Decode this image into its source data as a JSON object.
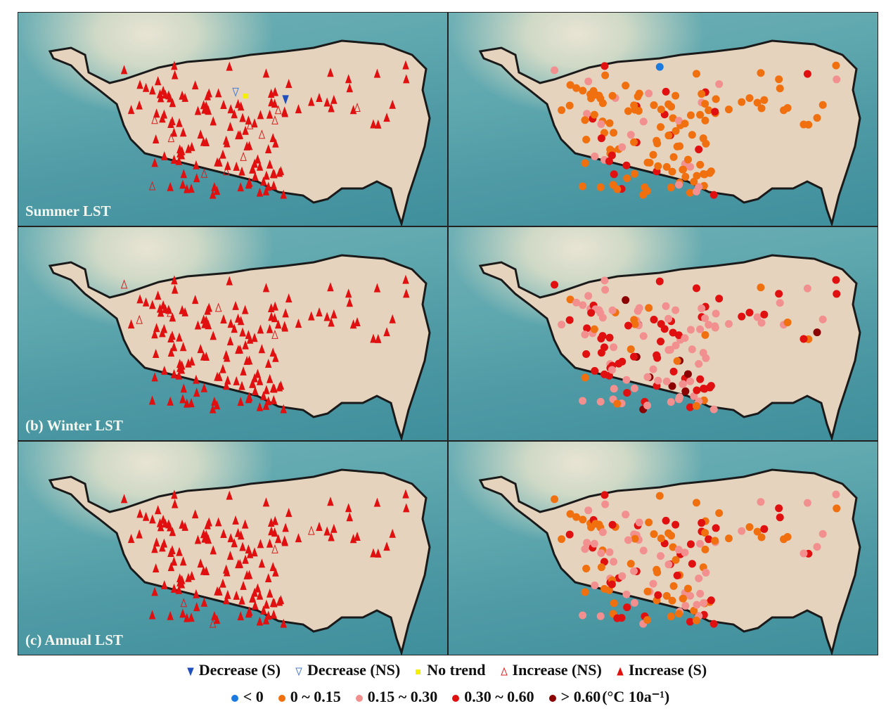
{
  "panels": [
    {
      "label": "Summer LST",
      "season": "summer"
    },
    {
      "label": "(b) Winter LST",
      "season": "winter"
    },
    {
      "label": "(c) Annual LST",
      "season": "annual"
    }
  ],
  "legend_trend": [
    {
      "label": "Decrease (S)",
      "color": "#1f4fbf",
      "shape": "tri-down-filled"
    },
    {
      "label": "Decrease (NS)",
      "color": "#4a7bd0",
      "shape": "tri-down-open"
    },
    {
      "label": "No trend",
      "color": "#f4f000",
      "shape": "square"
    },
    {
      "label": "Increase (NS)",
      "color": "#d61e1e",
      "shape": "tri-up-open"
    },
    {
      "label": "Increase (S)",
      "color": "#e01010",
      "shape": "tri-up-filled"
    }
  ],
  "legend_rate": [
    {
      "label": "< 0",
      "color": "#1a7ae0"
    },
    {
      "label": "0 ~ 0.15",
      "color": "#f07010"
    },
    {
      "label": "0.15 ~ 0.30",
      "color": "#f29090"
    },
    {
      "label": "0.30 ~ 0.60",
      "color": "#e01010"
    },
    {
      "label": "> 0.60",
      "color": "#8b0000"
    }
  ],
  "unit_label": "(°C 10a⁻¹)"
}
